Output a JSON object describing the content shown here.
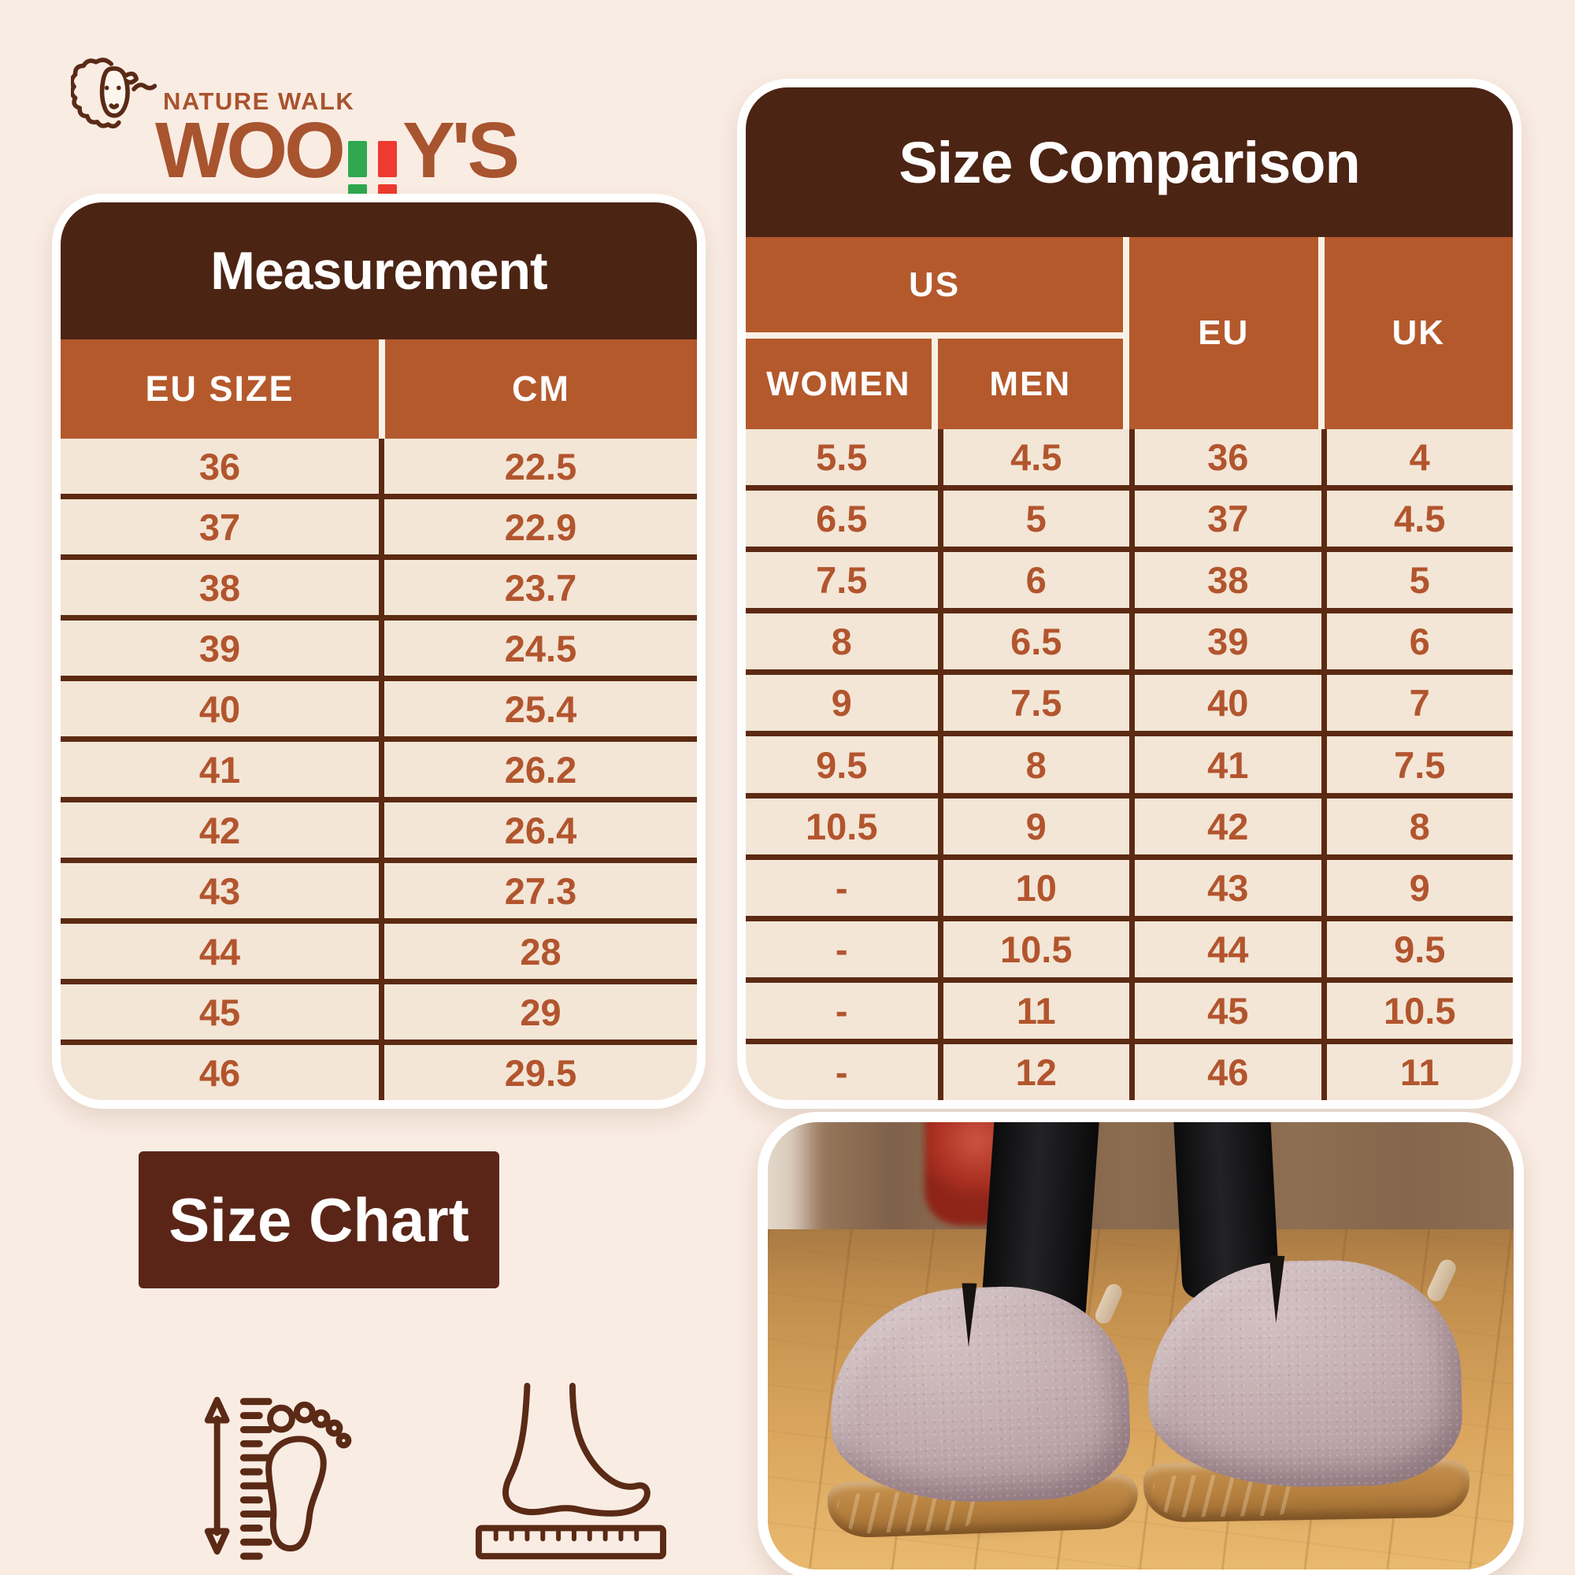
{
  "logo": {
    "tagline": "NATURE WALK",
    "brand_full": "WOOLLY'S",
    "brand_part1": "WOO",
    "brand_l_green": "L",
    "brand_l_red": "L",
    "brand_part2": "Y'S"
  },
  "measurement": {
    "title": "Measurement",
    "columns": [
      "EU SIZE",
      "CM"
    ],
    "rows": [
      [
        "36",
        "22.5"
      ],
      [
        "37",
        "22.9"
      ],
      [
        "38",
        "23.7"
      ],
      [
        "39",
        "24.5"
      ],
      [
        "40",
        "25.4"
      ],
      [
        "41",
        "26.2"
      ],
      [
        "42",
        "26.4"
      ],
      [
        "43",
        "27.3"
      ],
      [
        "44",
        "28"
      ],
      [
        "45",
        "29"
      ],
      [
        "46",
        "29.5"
      ]
    ]
  },
  "comparison": {
    "title": "Size Comparison",
    "header": {
      "us": "US",
      "women": "WOMEN",
      "men": "MEN",
      "eu": "EU",
      "uk": "UK"
    },
    "rows": [
      [
        "5.5",
        "4.5",
        "36",
        "4"
      ],
      [
        "6.5",
        "5",
        "37",
        "4.5"
      ],
      [
        "7.5",
        "6",
        "38",
        "5"
      ],
      [
        "8",
        "6.5",
        "39",
        "6"
      ],
      [
        "9",
        "7.5",
        "40",
        "7"
      ],
      [
        "9.5",
        "8",
        "41",
        "7.5"
      ],
      [
        "10.5",
        "9",
        "42",
        "8"
      ],
      [
        "-",
        "10",
        "43",
        "9"
      ],
      [
        "-",
        "10.5",
        "44",
        "9.5"
      ],
      [
        "-",
        "11",
        "45",
        "10.5"
      ],
      [
        "-",
        "12",
        "46",
        "11"
      ]
    ]
  },
  "badge": {
    "label": "Size Chart"
  },
  "icons": {
    "left": "height-ruler-footprint-icon",
    "right": "foot-on-ruler-icon",
    "logo": "sheep-icon"
  },
  "colors": {
    "page_background": "#f9ece3",
    "header_dark_brown": "#4c2414",
    "header_orange": "#b4592c",
    "row_cream": "#f3e6d6",
    "divider_dark": "#5c2a12",
    "data_text_rust": "#b2552e",
    "logo_brown": "#a8542e",
    "logo_green": "#2fa84f",
    "logo_red": "#ee3a30",
    "badge_brown": "#5a2517",
    "white": "#ffffff"
  }
}
